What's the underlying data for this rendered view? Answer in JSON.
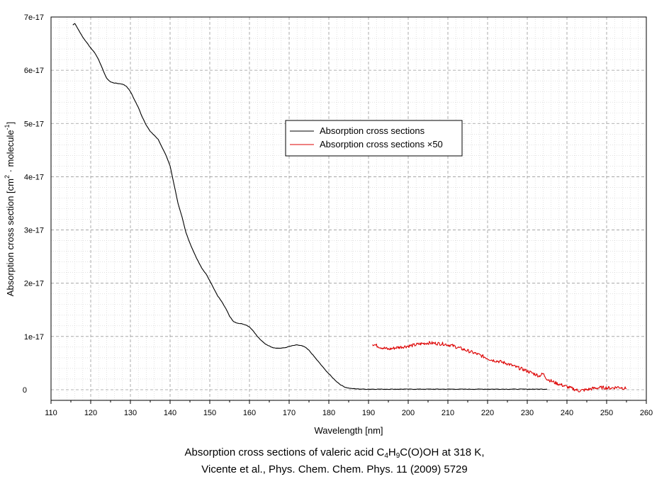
{
  "chart_data": {
    "type": "line",
    "xlabel": "Wavelength [nm]",
    "ylabel_main": "Absorption cross section [cm",
    "ylabel_exp1": "2",
    "ylabel_mid": " · molecule",
    "ylabel_exp2": "-1",
    "ylabel_end": "]",
    "xlim": [
      110,
      260
    ],
    "ylim": [
      -2e-18,
      7e-17
    ],
    "x_ticks": [
      110,
      120,
      130,
      140,
      150,
      160,
      170,
      180,
      190,
      200,
      210,
      220,
      230,
      240,
      250,
      260
    ],
    "y_ticks": [
      {
        "value": 0,
        "label": "0"
      },
      {
        "value": 1e-17,
        "label": "1e-17"
      },
      {
        "value": 2e-17,
        "label": "2e-17"
      },
      {
        "value": 3e-17,
        "label": "3e-17"
      },
      {
        "value": 4e-17,
        "label": "4e-17"
      },
      {
        "value": 5e-17,
        "label": "5e-17"
      },
      {
        "value": 6e-17,
        "label": "6e-17"
      },
      {
        "value": 7e-17,
        "label": "7e-17"
      }
    ],
    "grid": true,
    "legend_position": "center",
    "series": [
      {
        "name": "Absorption cross sections",
        "color": "#000000",
        "x": [
          115.5,
          116,
          117,
          118,
          119,
          120,
          121,
          122,
          123,
          124,
          125,
          126,
          127,
          128,
          129,
          130,
          131,
          132,
          133,
          134,
          135,
          136,
          137,
          138,
          139,
          140,
          141,
          142,
          143,
          144,
          145,
          146,
          147,
          148,
          149,
          150,
          151,
          152,
          153,
          154,
          155,
          156,
          157,
          158,
          159,
          160,
          161,
          162,
          163,
          164,
          165,
          166,
          167,
          168,
          169,
          170,
          171,
          172,
          173,
          174,
          175,
          176,
          177,
          178,
          179,
          180,
          181,
          182,
          183,
          184,
          185,
          186,
          187,
          188,
          189,
          190,
          192,
          195,
          200,
          205,
          210,
          215,
          220,
          225,
          230,
          233,
          235
        ],
        "values": [
          6.85e-17,
          6.88e-17,
          6.75e-17,
          6.62e-17,
          6.52e-17,
          6.42e-17,
          6.33e-17,
          6.2e-17,
          6.02e-17,
          5.85e-17,
          5.78e-17,
          5.76e-17,
          5.75e-17,
          5.74e-17,
          5.7e-17,
          5.6e-17,
          5.45e-17,
          5.3e-17,
          5.12e-17,
          4.97e-17,
          4.85e-17,
          4.78e-17,
          4.7e-17,
          4.55e-17,
          4.4e-17,
          4.2e-17,
          3.85e-17,
          3.5e-17,
          3.25e-17,
          2.95e-17,
          2.75e-17,
          2.58e-17,
          2.42e-17,
          2.28e-17,
          2.18e-17,
          2.05e-17,
          1.9e-17,
          1.76e-17,
          1.66e-17,
          1.53e-17,
          1.38e-17,
          1.28e-17,
          1.25e-17,
          1.24e-17,
          1.22e-17,
          1.18e-17,
          1.1e-17,
          1e-17,
          9.2e-18,
          8.6e-18,
          8.2e-18,
          7.9e-18,
          7.8e-18,
          7.8e-18,
          7.9e-18,
          8.1e-18,
          8.3e-18,
          8.4e-18,
          8.3e-18,
          8e-18,
          7.4e-18,
          6.5e-18,
          5.6e-18,
          4.7e-18,
          3.8e-18,
          3e-18,
          2.2e-18,
          1.5e-18,
          9e-19,
          5e-19,
          3e-19,
          2e-19,
          1.5e-19,
          1.2e-19,
          1e-19,
          1e-19,
          1e-19,
          1e-19,
          1e-19,
          1e-19,
          1e-19,
          1e-19,
          1e-19,
          1e-19,
          1e-19,
          1e-19,
          1e-19
        ]
      },
      {
        "name": "Absorption cross sections ×50",
        "color": "#dd0000",
        "x": [
          191,
          193,
          195,
          197,
          199,
          201,
          203,
          205,
          207,
          209,
          211,
          213,
          215,
          217,
          219,
          221,
          223,
          225,
          227,
          229,
          231,
          233,
          234,
          235,
          237,
          239,
          241,
          243,
          245,
          247,
          249,
          251,
          253,
          255
        ],
        "values": [
          8.6e-18,
          8e-18,
          7.6e-18,
          7.9e-18,
          8.1e-18,
          8.3e-18,
          8.6e-18,
          8.8e-18,
          8.7e-18,
          8.6e-18,
          8.3e-18,
          7.8e-18,
          7.3e-18,
          6.8e-18,
          6.2e-18,
          5.6e-18,
          5.3e-18,
          4.9e-18,
          4.3e-18,
          3.8e-18,
          3.2e-18,
          2.6e-18,
          3e-18,
          2e-18,
          1.3e-18,
          8e-19,
          3e-19,
          -2e-19,
          0,
          3e-19,
          4e-19,
          3e-19,
          5e-19,
          2e-19
        ]
      }
    ]
  },
  "caption": {
    "line1_pre": "Absorption cross sections of valeric acid C",
    "sub1": "4",
    "mid1": "H",
    "sub2": "9",
    "line1_post": "C(O)OH at 318 K,",
    "line2": "Vicente et al., Phys. Chem. Chem. Phys. 11 (2009) 5729"
  }
}
